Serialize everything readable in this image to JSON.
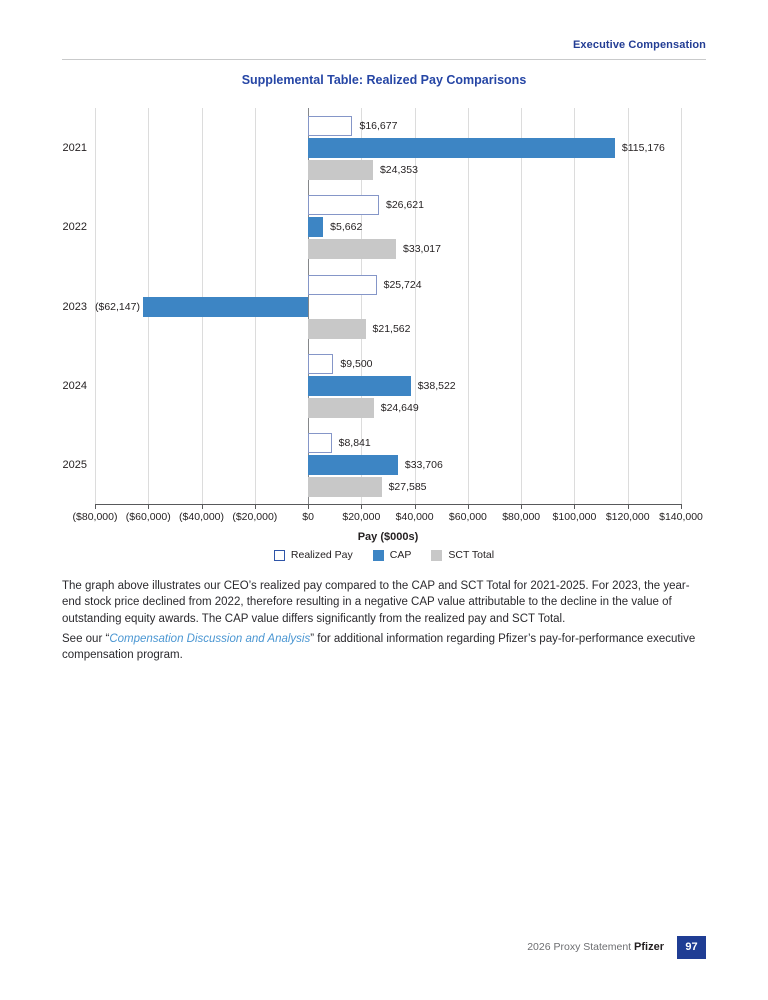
{
  "header": {
    "section": "Executive Compensation"
  },
  "chart_data": {
    "type": "bar",
    "orientation": "horizontal-grouped",
    "title": "Supplemental Table: Realized Pay Comparisons",
    "categories": [
      "2021",
      "2022",
      "2023",
      "2024",
      "2025"
    ],
    "series": [
      {
        "name": "Realized Pay",
        "style": "outline",
        "values": [
          16677,
          26621,
          25724,
          9500,
          8841
        ],
        "labels": [
          "$16,677",
          "$26,621",
          "$25,724",
          "$9,500",
          "$8,841"
        ]
      },
      {
        "name": "CAP",
        "style": "blue",
        "values": [
          115176,
          5662,
          -62147,
          38522,
          33706
        ],
        "labels": [
          "$115,176",
          "$5,662",
          "($62,147)",
          "$38,522",
          "$33,706"
        ]
      },
      {
        "name": "SCT Total",
        "style": "gray",
        "values": [
          24353,
          33017,
          21562,
          24649,
          27585
        ],
        "labels": [
          "$24,353",
          "$33,017",
          "$21,562",
          "$24,649",
          "$27,585"
        ]
      }
    ],
    "xlabel": "Pay ($000s)",
    "xlim": [
      -80000,
      140000
    ],
    "xtick_step": 20000,
    "xtick_labels": [
      "($80,000)",
      "($60,000)",
      "($40,000)",
      "($20,000)",
      "$0",
      "$20,000",
      "$40,000",
      "$60,000",
      "$80,000",
      "$100,000",
      "$120,000",
      "$140,000"
    ],
    "grid": "vertical",
    "legend_position": "bottom",
    "colors": {
      "cap_blue": "#3d85c4",
      "sct_gray": "#c8c8c8",
      "realized_pay_border": "#8596c8",
      "legend_outline_border": "#2f55a8",
      "gridline": "#dcdcdc",
      "zero_line": "#85878a",
      "axis": "#58595b"
    }
  },
  "body": {
    "paragraph1": "The graph above illustrates our CEO’s realized pay compared to the CAP and SCT Total for 2021-2025. For 2023, the year-end stock price declined from 2022, therefore resulting in a negative CAP value attributable to the decline in the value of outstanding equity awards. The CAP value differs significantly from the realized pay and SCT Total.",
    "paragraph2_prefix": "See our “",
    "link_text": "Compensation Discussion and Analysis",
    "paragraph2_suffix": "” for additional information regarding Pfizer’s pay-for-performance executive compensation program."
  },
  "footer": {
    "doc_label": "2026 Proxy Statement",
    "brand": "Pfizer",
    "page_number": "97"
  }
}
